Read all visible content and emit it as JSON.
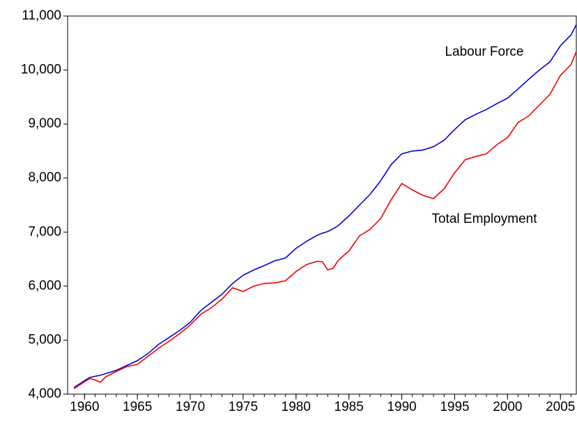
{
  "chart_data": {
    "type": "line",
    "x": [
      1959,
      1960,
      1960.5,
      1961,
      1961.5,
      1962,
      1963,
      1964,
      1965,
      1966,
      1967,
      1968,
      1969,
      1970,
      1971,
      1972,
      1973,
      1974,
      1975,
      1976,
      1977,
      1978,
      1979,
      1980,
      1981,
      1982,
      1982.5,
      1983,
      1983.5,
      1984,
      1985,
      1986,
      1987,
      1988,
      1989,
      1990,
      1991,
      1992,
      1993,
      1994,
      1995,
      1996,
      1997,
      1998,
      1999,
      2000,
      2001,
      2002,
      2003,
      2004,
      2005,
      2006,
      2006.5
    ],
    "series": [
      {
        "name": "Labour Force",
        "color": "#0000dd",
        "values": [
          4120,
          4250,
          4310,
          4330,
          4350,
          4380,
          4440,
          4530,
          4620,
          4750,
          4920,
          5050,
          5180,
          5330,
          5550,
          5700,
          5850,
          6050,
          6200,
          6300,
          6380,
          6470,
          6520,
          6700,
          6830,
          6940,
          6980,
          7010,
          7060,
          7120,
          7300,
          7500,
          7700,
          7950,
          8250,
          8450,
          8500,
          8520,
          8580,
          8700,
          8900,
          9080,
          9180,
          9270,
          9380,
          9480,
          9650,
          9830,
          10000,
          10150,
          10450,
          10650,
          10840
        ]
      },
      {
        "name": "Total Employment",
        "color": "#ee0000",
        "values": [
          4100,
          4230,
          4290,
          4260,
          4220,
          4320,
          4420,
          4510,
          4550,
          4700,
          4850,
          4980,
          5120,
          5280,
          5480,
          5600,
          5760,
          5970,
          5900,
          6000,
          6050,
          6060,
          6100,
          6270,
          6400,
          6460,
          6450,
          6300,
          6330,
          6480,
          6650,
          6930,
          7050,
          7250,
          7600,
          7900,
          7780,
          7680,
          7620,
          7800,
          8100,
          8340,
          8400,
          8450,
          8620,
          8750,
          9030,
          9150,
          9350,
          9550,
          9900,
          10100,
          10340
        ]
      }
    ],
    "xlim": [
      1958.4,
      2006.5
    ],
    "xticks": [
      1960,
      1965,
      1970,
      1975,
      1980,
      1985,
      1990,
      1995,
      2000,
      2005
    ],
    "ylim": [
      4000,
      11000
    ],
    "yticks": [
      {
        "value": 4000,
        "label": "4,000"
      },
      {
        "value": 5000,
        "label": "5,000"
      },
      {
        "value": 6000,
        "label": "6,000"
      },
      {
        "value": 7000,
        "label": "7,000"
      },
      {
        "value": 8000,
        "label": "8,000"
      },
      {
        "value": 9000,
        "label": "9,000"
      },
      {
        "value": 10000,
        "label": "10,000"
      },
      {
        "value": 11000,
        "label": "11,000"
      }
    ],
    "grid": false
  }
}
